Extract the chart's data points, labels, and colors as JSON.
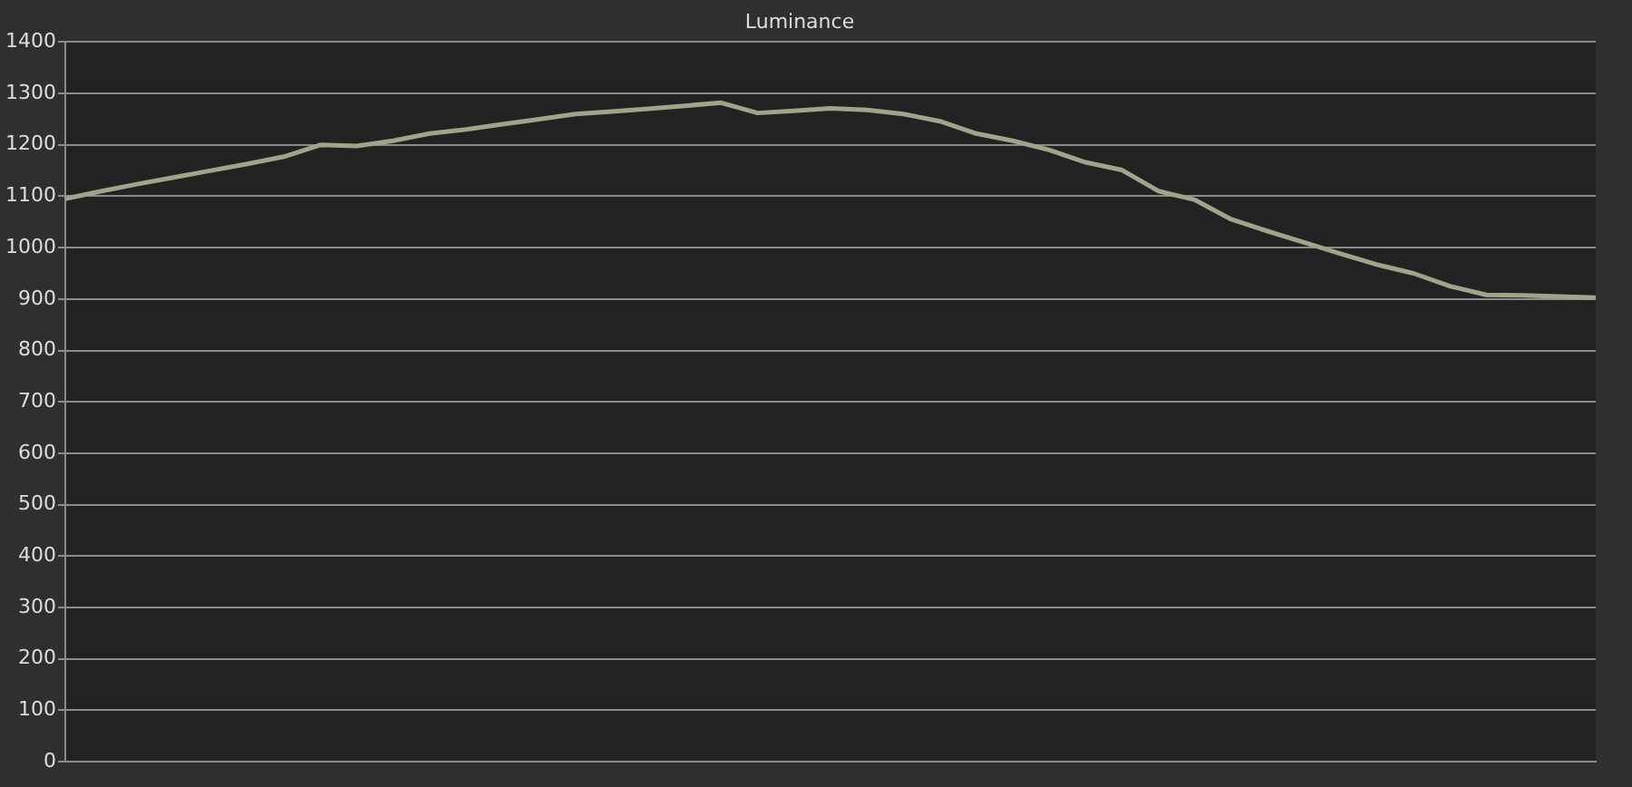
{
  "chart_data": {
    "type": "line",
    "title": "Luminance",
    "categories": [
      null,
      null,
      null,
      null,
      null,
      null,
      null,
      null,
      null,
      null,
      null,
      null,
      null,
      null,
      null,
      null,
      null,
      null,
      null,
      null,
      null,
      null,
      null,
      null,
      null,
      null,
      null,
      null,
      null,
      null,
      null,
      null,
      null,
      null,
      null,
      null,
      null,
      null,
      null,
      null,
      null,
      null,
      null
    ],
    "series": [
      {
        "color": "#a3a28a",
        "values": [
          1095,
          1110,
          1124,
          1137,
          1150,
          1163,
          1177,
          1200,
          1198,
          1208,
          1222,
          1230,
          1240,
          1250,
          1260,
          1265,
          1270,
          1276,
          1282,
          1262,
          1266,
          1271,
          1268,
          1260,
          1246,
          1222,
          1208,
          1190,
          1166,
          1151,
          1110,
          1093,
          1055,
          1032,
          1010,
          988,
          967,
          950,
          925,
          908,
          907,
          905,
          903
        ]
      }
    ],
    "ylim": [
      0,
      1400
    ],
    "yticks": [
      0,
      100,
      200,
      300,
      400,
      500,
      600,
      700,
      800,
      900,
      1000,
      1100,
      1200,
      1300,
      1400
    ],
    "grid": "y",
    "legend": false,
    "marker": "none",
    "line_style": "solid",
    "tick_labels": "y"
  }
}
